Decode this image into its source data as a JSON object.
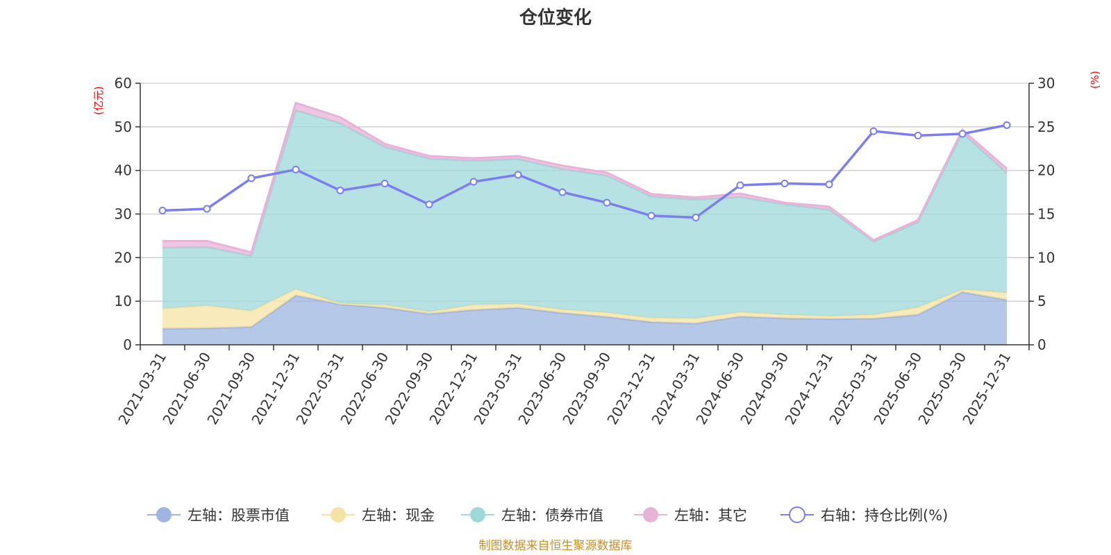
{
  "chart_data": {
    "type": "area",
    "title": "仓位变化",
    "left_axis_unit": "(亿元)",
    "right_axis_unit": "(%)",
    "left_ylim": [
      0,
      60
    ],
    "left_ticks": [
      0,
      10,
      20,
      30,
      40,
      50,
      60
    ],
    "right_ylim": [
      0,
      30
    ],
    "right_ticks": [
      0,
      5,
      10,
      15,
      20,
      25,
      30
    ],
    "categories": [
      "2021-03-31",
      "2021-06-30",
      "2021-09-30",
      "2021-12-31",
      "2022-03-31",
      "2022-06-30",
      "2022-09-30",
      "2022-12-31",
      "2023-03-31",
      "2023-06-30",
      "2023-09-30",
      "2023-12-31",
      "2024-03-31",
      "2024-06-30",
      "2024-09-30",
      "2024-12-31",
      "2025-03-31",
      "2025-06-30",
      "2025-09-30",
      "2025-12-31"
    ],
    "stacked_series": [
      {
        "name": "左轴：股票市值",
        "axis": "left",
        "color": "#9db5e0",
        "values": [
          3.7,
          3.8,
          4.1,
          11.3,
          9.3,
          8.5,
          7.1,
          8.0,
          8.5,
          7.3,
          6.4,
          5.2,
          4.9,
          6.5,
          6.1,
          5.9,
          6.0,
          6.9,
          12.1,
          10.3
        ]
      },
      {
        "name": "左轴：现金",
        "axis": "left",
        "color": "#f5e3a3",
        "values": [
          4.6,
          5.2,
          3.7,
          1.5,
          0.2,
          0.7,
          0.5,
          1.2,
          0.9,
          0.8,
          1.0,
          1.0,
          1.2,
          1.0,
          0.8,
          0.7,
          0.9,
          1.7,
          0.6,
          1.7
        ]
      },
      {
        "name": "左轴：债券市值",
        "axis": "left",
        "color": "#9fd8d9",
        "values": [
          14.0,
          13.4,
          12.6,
          41.0,
          41.3,
          36.2,
          35.1,
          33.0,
          33.2,
          32.2,
          31.4,
          27.8,
          27.2,
          26.4,
          25.3,
          24.4,
          16.8,
          19.5,
          35.9,
          27.4
        ]
      },
      {
        "name": "左轴：其它",
        "axis": "left",
        "color": "#e8b3d8",
        "values": [
          1.5,
          1.4,
          0.8,
          1.7,
          1.4,
          0.7,
          0.6,
          0.6,
          0.7,
          0.8,
          0.7,
          0.6,
          0.5,
          0.8,
          0.4,
          0.7,
          0.3,
          0.5,
          0.7,
          1.0
        ]
      }
    ],
    "line_series": {
      "name": "右轴：持仓比例(%)",
      "axis": "right",
      "color": "#7b7ef0",
      "values": [
        15.4,
        15.6,
        19.1,
        20.1,
        17.7,
        18.5,
        16.1,
        18.7,
        19.5,
        17.5,
        16.3,
        14.8,
        14.6,
        18.3,
        18.5,
        18.4,
        24.5,
        24.0,
        24.2,
        25.2
      ]
    },
    "legend_position": "bottom",
    "grid": true
  },
  "source_note": "制图数据来自恒生聚源数据库",
  "colors": {
    "title": "#333333",
    "axis_unit": "#ff0000",
    "source_note": "#c8902a",
    "gridline": "#cccccc",
    "axis": "#333333"
  }
}
